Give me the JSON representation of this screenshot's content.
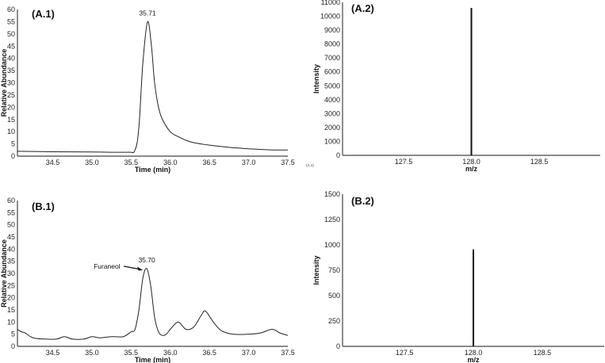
{
  "chart_data": [
    {
      "id": "A.1",
      "type": "line",
      "panel_label": "(A.1)",
      "xlabel": "Time (min)",
      "ylabel": "Relative Abundance",
      "xlim": [
        34.05,
        37.5
      ],
      "ylim": [
        0,
        60
      ],
      "xticks": [
        "34.5",
        "35.0",
        "35.5",
        "36.0",
        "36.5",
        "37.0",
        "37.5"
      ],
      "yticks": [
        "0",
        "5",
        "10",
        "15",
        "20",
        "25",
        "30",
        "35",
        "40",
        "45",
        "50",
        "55",
        "60"
      ],
      "peak_annotation": "35.71",
      "x": [
        34.05,
        34.5,
        35.0,
        35.45,
        35.55,
        35.6,
        35.65,
        35.71,
        35.76,
        35.8,
        35.85,
        35.9,
        36.0,
        36.1,
        36.2,
        36.3,
        36.5,
        36.75,
        37.0,
        37.25,
        37.5
      ],
      "y": [
        2.0,
        1.8,
        1.7,
        1.6,
        2.5,
        12,
        38,
        55,
        45,
        30,
        20,
        15,
        10,
        8,
        6.5,
        5.5,
        4.5,
        3.6,
        3.0,
        2.6,
        2.5
      ]
    },
    {
      "id": "A.2",
      "type": "bar",
      "panel_label": "(A.2)",
      "xlabel": "m/z",
      "ylabel": "Intensity",
      "xlim": [
        127.05,
        128.95
      ],
      "ylim": [
        0,
        11000
      ],
      "xticks": [
        "127.5",
        "128.0",
        "128.5"
      ],
      "yticks": [
        "0",
        "1000",
        "2000",
        "3000",
        "4000",
        "5000",
        "6000",
        "7000",
        "8000",
        "9000",
        "10000",
        "11000"
      ],
      "categories": [
        "128.0"
      ],
      "values": [
        10600
      ],
      "footnote": "(A.1)"
    },
    {
      "id": "B.1",
      "type": "line",
      "panel_label": "(B.1)",
      "xlabel": "Time (min)",
      "ylabel": "Relative Abundance",
      "xlim": [
        34.05,
        37.5
      ],
      "ylim": [
        0,
        60
      ],
      "xticks": [
        "34.5",
        "35.0",
        "35.5",
        "36.0",
        "36.5",
        "37.0",
        "37.5"
      ],
      "yticks": [
        "0",
        "5",
        "10",
        "15",
        "20",
        "25",
        "30",
        "35",
        "40",
        "45",
        "50",
        "55",
        "60"
      ],
      "peak_annotation": "35.70",
      "arrow_label": "Furaneol",
      "x": [
        34.05,
        34.1,
        34.15,
        34.25,
        34.4,
        34.55,
        34.65,
        34.75,
        34.9,
        35.0,
        35.1,
        35.25,
        35.4,
        35.5,
        35.55,
        35.6,
        35.65,
        35.7,
        35.75,
        35.8,
        35.85,
        35.9,
        35.95,
        36.0,
        36.1,
        36.2,
        36.3,
        36.4,
        36.45,
        36.55,
        36.65,
        36.8,
        37.0,
        37.15,
        37.3,
        37.4,
        37.5
      ],
      "y": [
        7,
        6,
        5.5,
        3.5,
        3,
        3,
        4,
        3,
        3,
        4,
        3.5,
        4,
        4,
        6,
        7,
        15,
        28,
        32,
        25,
        12,
        6,
        4.5,
        5,
        7,
        10,
        7,
        8,
        13,
        14.5,
        10,
        6.5,
        5,
        5,
        5.5,
        7,
        5.5,
        4.5
      ]
    },
    {
      "id": "B.2",
      "type": "bar",
      "panel_label": "(B.2)",
      "xlabel": "m/z",
      "ylabel": "Intensity",
      "xlim": [
        127.05,
        128.95
      ],
      "ylim": [
        0,
        1500
      ],
      "xticks": [
        "127.5",
        "128.0",
        "128.5"
      ],
      "yticks": [
        "0",
        "250",
        "500",
        "750",
        "1000",
        "1250",
        "1500"
      ],
      "categories": [
        "128.0"
      ],
      "values": [
        955
      ]
    }
  ]
}
